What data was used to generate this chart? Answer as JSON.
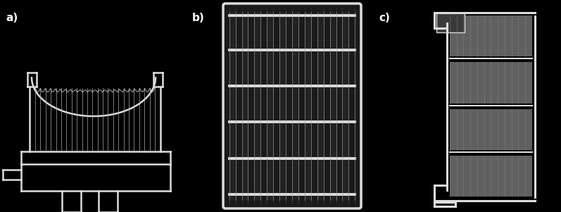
{
  "background_color": "#000000",
  "label_color": "#ffffff",
  "label_fontsize": 11,
  "fig_width": 7.97,
  "fig_height": 3.01,
  "white_color": "#dddddd",
  "light_gray": "#aaaaaa",
  "mid_gray": "#777777",
  "dark_gray": "#333333",
  "panel_a_label": "a)",
  "panel_b_label": "b)",
  "panel_c_label": "c)"
}
